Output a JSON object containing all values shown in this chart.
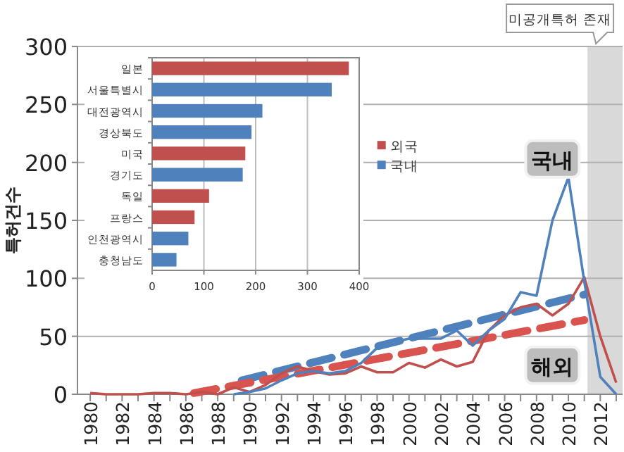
{
  "chart_data": [
    {
      "type": "line",
      "ylabel": "특허건수",
      "xlim": [
        1979.2,
        2013.4
      ],
      "ylim": [
        0,
        300
      ],
      "xticks": [
        1980,
        {
          "value": 1981,
          "label": null
        },
        1982,
        {
          "value": 1983,
          "label": null
        },
        1984,
        {
          "value": 1985,
          "label": null
        },
        1986,
        {
          "value": 1987,
          "label": null
        },
        1988,
        {
          "value": 1989,
          "label": null
        },
        1990,
        {
          "value": 1991,
          "label": null
        },
        1992,
        {
          "value": 1993,
          "label": null
        },
        1994,
        {
          "value": 1995,
          "label": null
        },
        1996,
        {
          "value": 1997,
          "label": null
        },
        1998,
        {
          "value": 1999,
          "label": null
        },
        2000,
        {
          "value": 2001,
          "label": null
        },
        2002,
        {
          "value": 2003,
          "label": null
        },
        2004,
        {
          "value": 2005,
          "label": null
        },
        2006,
        {
          "value": 2007,
          "label": null
        },
        2008,
        {
          "value": 2009,
          "label": null
        },
        2010,
        {
          "value": 2011,
          "label": null
        },
        2012,
        {
          "value": 2013,
          "label": null
        }
      ],
      "yticks": [
        0,
        50,
        100,
        150,
        200,
        250,
        300
      ],
      "grid": "y",
      "legend": "top",
      "series": [
        {
          "name": "외국",
          "color": "#c0504d",
          "line_style": "solid",
          "x": [
            1980,
            1981,
            1982,
            1983,
            1984,
            1985,
            1986,
            1987,
            1988,
            1989,
            1990,
            1991,
            1992,
            1993,
            1994,
            1995,
            1996,
            1997,
            1998,
            1999,
            2000,
            2001,
            2002,
            2003,
            2004,
            2005,
            2006,
            2007,
            2008,
            2009,
            2010,
            2011,
            2012,
            2013
          ],
          "values": [
            1,
            0,
            0,
            0,
            1,
            1,
            0,
            2,
            0,
            6,
            2,
            8,
            18,
            24,
            20,
            17,
            18,
            24,
            19,
            19,
            27,
            23,
            30,
            24,
            28,
            55,
            68,
            75,
            78,
            68,
            78,
            101,
            50,
            10
          ]
        },
        {
          "name": "국내",
          "color": "#4f81bd",
          "line_style": "solid",
          "x": [
            1989,
            1990,
            1991,
            1992,
            1993,
            1994,
            1995,
            1996,
            1997,
            1998,
            1999,
            2000,
            2001,
            2002,
            2003,
            2004,
            2005,
            2006,
            2007,
            2008,
            2009,
            2010,
            2011,
            2012,
            2013
          ],
          "values": [
            0,
            2,
            5,
            12,
            18,
            20,
            18,
            20,
            27,
            40,
            45,
            48,
            48,
            48,
            55,
            42,
            55,
            65,
            88,
            85,
            150,
            187,
            97,
            15,
            0
          ]
        },
        {
          "color": "#4f81bd",
          "line_style": "dashed",
          "x": [
            1989.5,
            2011
          ],
          "values": [
            12,
            86
          ]
        },
        {
          "color": "#d9534f",
          "line_style": "dashed",
          "x": [
            1986.5,
            2011
          ],
          "values": [
            1,
            64
          ]
        }
      ],
      "bands": [
        {
          "axis": "x",
          "from": 2011.2,
          "to": 2013.4,
          "label": "미공개특허 존재",
          "color": "#d9d9d9"
        }
      ],
      "annotations": [
        {
          "text": "국내",
          "x": 2009,
          "y": 203
        },
        {
          "text": "해외",
          "x": 2009,
          "y": 25
        }
      ]
    },
    {
      "type": "bar",
      "orientation": "horizontal",
      "categories": [
        "일본",
        "서울특별시",
        "대전광역시",
        "경상북도",
        "미국",
        "경기도",
        "독일",
        "프랑스",
        "인천광역시",
        "충청남도"
      ],
      "values": [
        380,
        347,
        213,
        192,
        180,
        175,
        110,
        82,
        70,
        47
      ],
      "colors": [
        "#c0504d",
        "#4f81bd",
        "#4f81bd",
        "#4f81bd",
        "#c0504d",
        "#4f81bd",
        "#c0504d",
        "#c0504d",
        "#4f81bd",
        "#4f81bd"
      ],
      "xlim": [
        0,
        400
      ],
      "xticks": [
        0,
        100,
        200,
        300,
        400
      ],
      "grid": "x"
    }
  ]
}
